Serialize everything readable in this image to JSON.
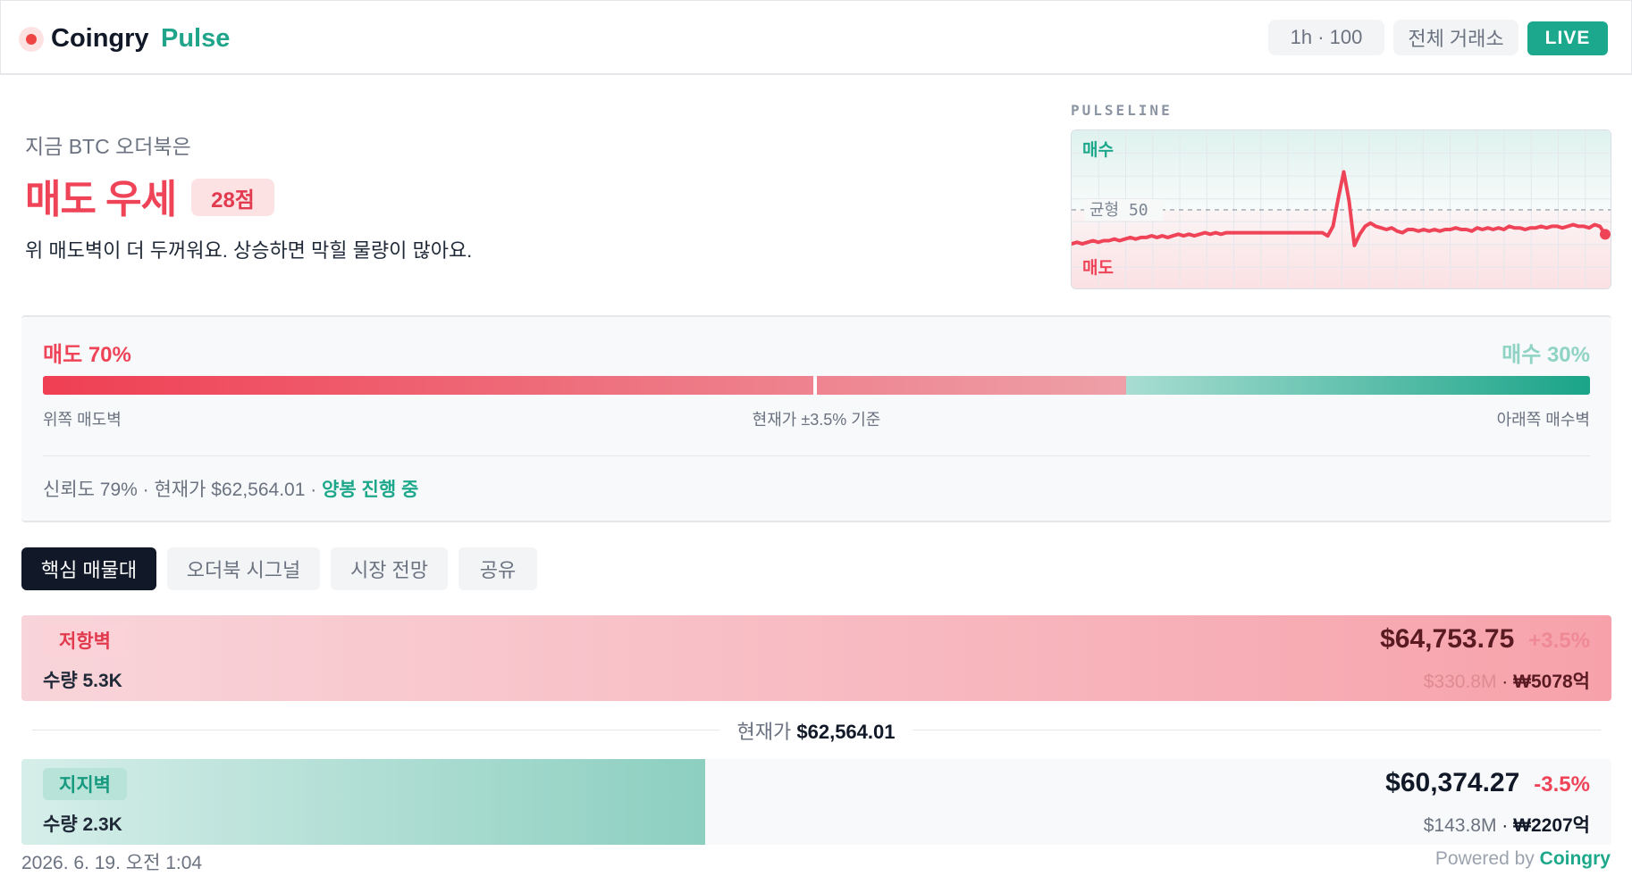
{
  "header": {
    "brand": "Coingry",
    "product": "Pulse",
    "range_chip": "1h · 100",
    "exchange_chip": "전체 거래소",
    "live_badge": "LIVE"
  },
  "hero": {
    "kicker": "지금 BTC 오더북은",
    "title": "매도 우세",
    "score": "28점",
    "description": "위 매도벽이 더 두꺼워요. 상승하면 막힐 물량이 많아요."
  },
  "pulseline": {
    "label": "PULSELINE",
    "top_label": "매수",
    "bottom_label": "매도",
    "mid_label": "균형 50",
    "chart_data": {
      "type": "line",
      "ylim": [
        0,
        100
      ],
      "midline": 50,
      "values": [
        29,
        30,
        29,
        30,
        31,
        30,
        31,
        31,
        32,
        31,
        32,
        33,
        32,
        33,
        33,
        34,
        33,
        34,
        33,
        34,
        35,
        34,
        35,
        34,
        35,
        36,
        35,
        36,
        35,
        36,
        36,
        36,
        36,
        36,
        36,
        36,
        36,
        36,
        36,
        36,
        36,
        36,
        36,
        36,
        36,
        36,
        36,
        36,
        34,
        40,
        58,
        74,
        56,
        28,
        35,
        40,
        42,
        40,
        39,
        38,
        39,
        37,
        36,
        38,
        38,
        37,
        38,
        37,
        38,
        37,
        38,
        38,
        39,
        38,
        38,
        37,
        39,
        38,
        39,
        38,
        39,
        38,
        40,
        39,
        39,
        38,
        39,
        39,
        40,
        39,
        40,
        40,
        39,
        40,
        41,
        40,
        40,
        39,
        41,
        40,
        35
      ]
    }
  },
  "balance": {
    "sell_label": "매도 70%",
    "buy_label": "매수 30%",
    "sell_pct": 70,
    "divider_pct": 50,
    "caption_left": "위쪽 매도벽",
    "caption_center": "현재가 ±3.5% 기준",
    "caption_right": "아래쪽 매수벽",
    "meta": "신뢰도 79% · 현재가 $62,564.01 · ",
    "trend": "양봉 진행 중"
  },
  "tabs": [
    "핵심 매물대",
    "오더북 시그널",
    "시장 전망",
    "공유"
  ],
  "resistance": {
    "tag": "저항벽",
    "qty": "수량 5.3K",
    "price": "$64,753.75",
    "pct": "+3.5%",
    "usd": "$330.8M",
    "krw": "₩5078억",
    "fill": 1.0
  },
  "current": {
    "label": "현재가",
    "price": "$62,564.01"
  },
  "support": {
    "tag": "지지벽",
    "qty": "수량 2.3K",
    "price": "$60,374.27",
    "pct": "-3.5%",
    "usd": "$143.8M",
    "krw": "₩2207억",
    "fill": 0.43
  },
  "footer": {
    "date": "2026. 6. 19. 오전 1:04",
    "powered_prefix": "Powered by",
    "powered_brand": "Coingry"
  },
  "colors": {
    "sell": "#ef4458",
    "buy": "#1ea88b",
    "dark": "#111827"
  }
}
